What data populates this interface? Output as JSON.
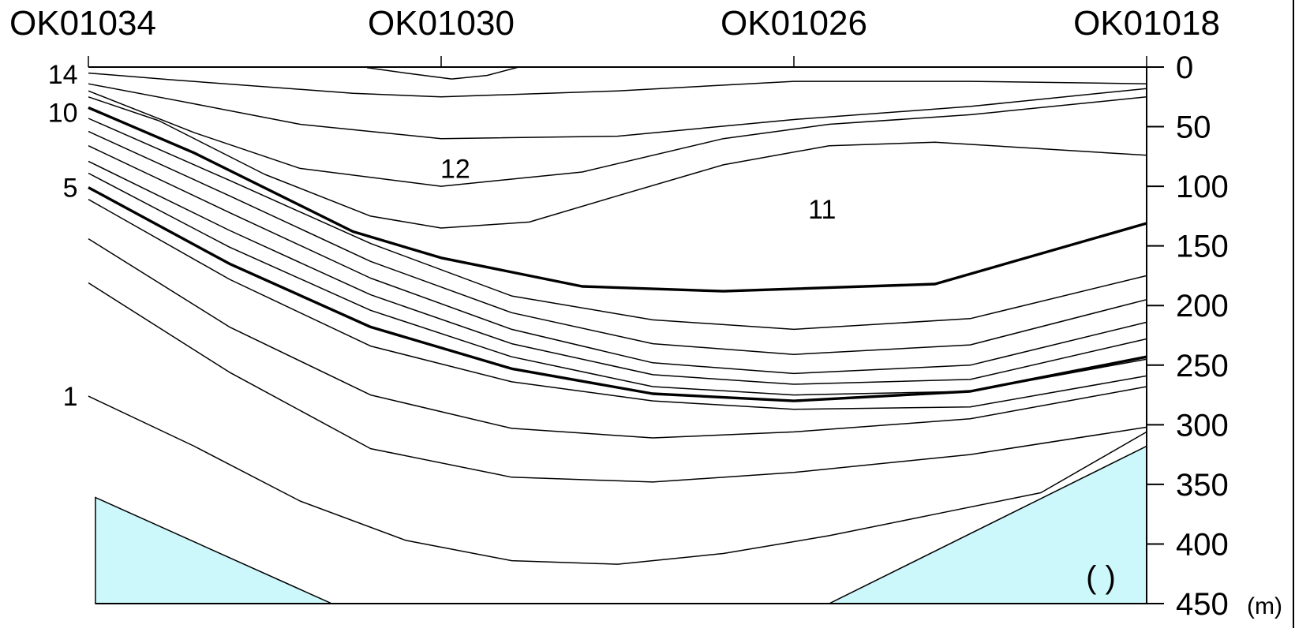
{
  "chart_data": {
    "type": "line",
    "title": "",
    "stations": [
      "OK01034",
      "OK01030",
      "OK01026",
      "OK01018"
    ],
    "x_positions_km": [
      0,
      1,
      2,
      3
    ],
    "ylabel": "",
    "y_unit": "(m)",
    "yticks": [
      0,
      50,
      100,
      150,
      200,
      250,
      300,
      350,
      400,
      450
    ],
    "ylim": [
      0,
      450
    ],
    "y_inverted": true,
    "contour_labels": [
      {
        "text": "14",
        "x": -0.03,
        "y": 6,
        "anchor": "end"
      },
      {
        "text": "10",
        "x": -0.03,
        "y": 38,
        "anchor": "end"
      },
      {
        "text": "5",
        "x": -0.03,
        "y": 101,
        "anchor": "end"
      },
      {
        "text": "1",
        "x": -0.03,
        "y": 276,
        "anchor": "end"
      },
      {
        "text": "12",
        "x": 1.04,
        "y": 85,
        "anchor": "middle"
      },
      {
        "text": "11",
        "x": 2.08,
        "y": 119,
        "anchor": "middle"
      }
    ],
    "series": [
      {
        "bold": false,
        "points": [
          [
            0.79,
            0.5
          ],
          [
            0.9,
            5
          ],
          [
            1.03,
            10
          ],
          [
            1.13,
            7
          ],
          [
            1.22,
            0
          ]
        ]
      },
      {
        "bold": false,
        "points": [
          [
            0,
            5
          ],
          [
            0.25,
            11
          ],
          [
            0.75,
            22
          ],
          [
            1.0,
            25
          ],
          [
            1.5,
            20
          ],
          [
            2.0,
            12
          ],
          [
            2.5,
            12
          ],
          [
            3.0,
            14
          ]
        ]
      },
      {
        "bold": false,
        "points": [
          [
            0,
            14
          ],
          [
            0.25,
            28
          ],
          [
            0.6,
            48
          ],
          [
            1.0,
            60
          ],
          [
            1.5,
            58
          ],
          [
            2.0,
            44
          ],
          [
            2.5,
            33
          ],
          [
            3.0,
            18
          ]
        ]
      },
      {
        "bold": false,
        "points": [
          [
            0,
            20
          ],
          [
            0.3,
            55
          ],
          [
            0.6,
            85
          ],
          [
            1.0,
            100
          ],
          [
            1.4,
            88
          ],
          [
            1.8,
            60
          ],
          [
            2.1,
            48
          ],
          [
            2.5,
            40
          ],
          [
            3.0,
            25
          ]
        ]
      },
      {
        "bold": false,
        "points": [
          [
            0,
            25
          ],
          [
            0.2,
            45
          ],
          [
            0.5,
            90
          ],
          [
            0.8,
            125
          ],
          [
            1.0,
            135
          ],
          [
            1.25,
            130
          ],
          [
            1.5,
            108
          ],
          [
            1.8,
            82
          ],
          [
            2.1,
            66
          ],
          [
            2.4,
            63
          ],
          [
            3.0,
            74
          ]
        ]
      },
      {
        "bold": true,
        "points": [
          [
            0,
            34
          ],
          [
            0.3,
            72
          ],
          [
            0.75,
            138
          ],
          [
            1.0,
            160
          ],
          [
            1.4,
            184
          ],
          [
            1.8,
            188
          ],
          [
            2.4,
            182
          ],
          [
            3.0,
            131
          ]
        ]
      },
      {
        "bold": false,
        "points": [
          [
            0,
            43
          ],
          [
            0.4,
            95
          ],
          [
            0.8,
            148
          ],
          [
            1.2,
            192
          ],
          [
            1.6,
            212
          ],
          [
            2.0,
            220
          ],
          [
            2.5,
            211
          ],
          [
            3.0,
            175
          ]
        ]
      },
      {
        "bold": false,
        "points": [
          [
            0,
            54
          ],
          [
            0.4,
            108
          ],
          [
            0.8,
            163
          ],
          [
            1.2,
            206
          ],
          [
            1.6,
            232
          ],
          [
            2.0,
            241
          ],
          [
            2.5,
            233
          ],
          [
            3.0,
            195
          ]
        ]
      },
      {
        "bold": false,
        "points": [
          [
            0,
            66
          ],
          [
            0.4,
            122
          ],
          [
            0.8,
            177
          ],
          [
            1.2,
            220
          ],
          [
            1.6,
            248
          ],
          [
            2.0,
            257
          ],
          [
            2.5,
            250
          ],
          [
            3.0,
            214
          ]
        ]
      },
      {
        "bold": false,
        "points": [
          [
            0,
            79
          ],
          [
            0.4,
            137
          ],
          [
            0.8,
            191
          ],
          [
            1.2,
            232
          ],
          [
            1.6,
            258
          ],
          [
            2.0,
            266
          ],
          [
            2.5,
            262
          ],
          [
            3.0,
            228
          ]
        ]
      },
      {
        "bold": false,
        "points": [
          [
            0,
            89
          ],
          [
            0.4,
            151
          ],
          [
            0.8,
            204
          ],
          [
            1.2,
            243
          ],
          [
            1.6,
            268
          ],
          [
            2.0,
            275
          ],
          [
            2.5,
            272
          ],
          [
            3.0,
            245
          ]
        ]
      },
      {
        "bold": true,
        "points": [
          [
            0,
            101
          ],
          [
            0.4,
            165
          ],
          [
            0.8,
            218
          ],
          [
            1.2,
            253
          ],
          [
            1.6,
            274
          ],
          [
            2.0,
            280
          ],
          [
            2.5,
            272
          ],
          [
            3.0,
            243
          ]
        ]
      },
      {
        "bold": false,
        "points": [
          [
            0,
            111
          ],
          [
            0.4,
            178
          ],
          [
            0.8,
            234
          ],
          [
            1.2,
            264
          ],
          [
            1.6,
            280
          ],
          [
            2.0,
            287
          ],
          [
            2.5,
            285
          ],
          [
            3.0,
            259
          ]
        ]
      },
      {
        "bold": false,
        "points": [
          [
            0,
            144
          ],
          [
            0.4,
            218
          ],
          [
            0.8,
            275
          ],
          [
            1.2,
            303
          ],
          [
            1.6,
            311
          ],
          [
            2.0,
            306
          ],
          [
            2.5,
            295
          ],
          [
            3.0,
            268
          ]
        ]
      },
      {
        "bold": false,
        "points": [
          [
            0,
            181
          ],
          [
            0.4,
            256
          ],
          [
            0.8,
            320
          ],
          [
            1.2,
            344
          ],
          [
            1.6,
            348
          ],
          [
            2.0,
            340
          ],
          [
            2.5,
            325
          ],
          [
            3.0,
            302
          ]
        ]
      },
      {
        "bold": false,
        "points": [
          [
            0,
            276
          ],
          [
            0.3,
            318
          ],
          [
            0.6,
            364
          ],
          [
            0.9,
            397
          ],
          [
            1.2,
            414
          ],
          [
            1.5,
            417
          ],
          [
            1.8,
            408
          ],
          [
            2.1,
            393
          ],
          [
            2.4,
            375
          ],
          [
            2.7,
            357
          ],
          [
            3.0,
            306
          ]
        ]
      }
    ],
    "shaded_regions": [
      {
        "color": "#ccf7fb",
        "points": [
          [
            0.02,
            361
          ],
          [
            0.02,
            450
          ],
          [
            0.69,
            450
          ]
        ]
      },
      {
        "color": "#ccf7fb",
        "points": [
          [
            2.1,
            450
          ],
          [
            3.0,
            450
          ],
          [
            3.0,
            318
          ]
        ]
      }
    ],
    "annotation": "(  )"
  }
}
